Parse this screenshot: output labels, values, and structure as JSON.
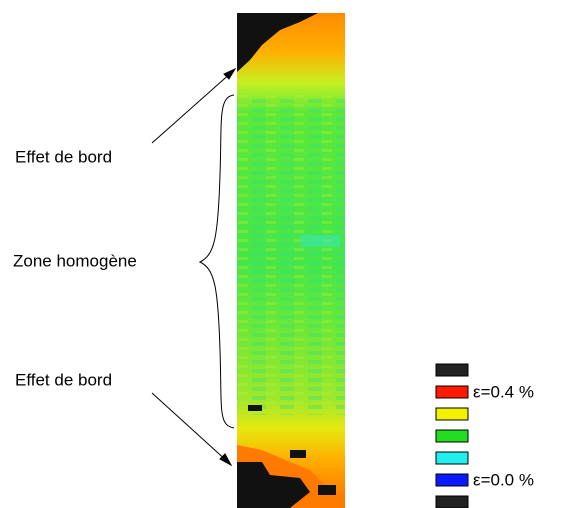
{
  "annotations": [
    {
      "label": "Effet de bord"
    },
    {
      "label": "Zone homogène"
    },
    {
      "label": "Effet de bord"
    }
  ],
  "legend": [
    {
      "color": "#222222"
    },
    {
      "color": "#ff1a00",
      "label": "ε=0.4 %"
    },
    {
      "color": "#f2f200"
    },
    {
      "color": "#22dd22"
    },
    {
      "color": "#22eeee"
    },
    {
      "color": "#0a1aff",
      "label": "ε=0.0 %"
    },
    {
      "color": "#222222"
    }
  ]
}
